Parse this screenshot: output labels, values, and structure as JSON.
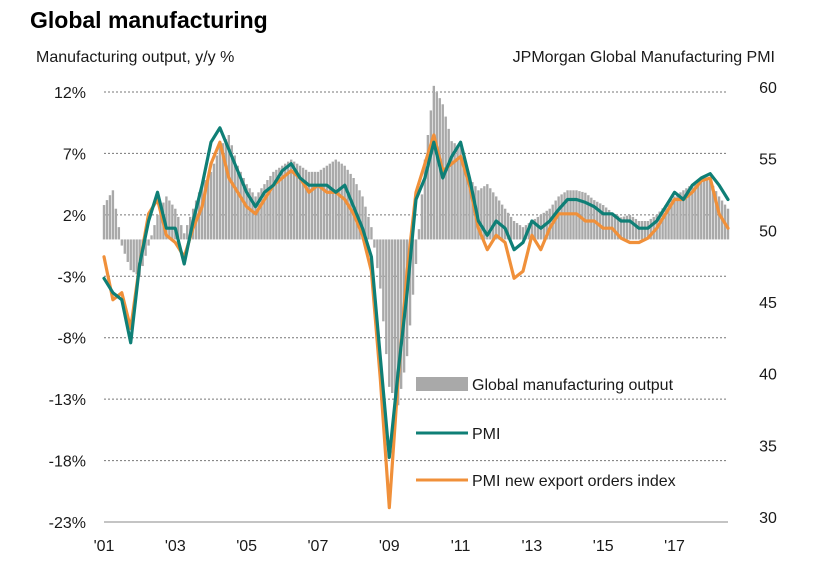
{
  "chart_data": {
    "type": "bar+line",
    "title": "Global manufacturing",
    "ylabel_left": "Manufacturing output, y/y %",
    "ylabel_right": "JPMorgan Global Manufacturing PMI",
    "left_axis": {
      "range": [
        -23,
        12
      ],
      "ticks": [
        12,
        7,
        2,
        -3,
        -8,
        -13,
        -18,
        -23
      ],
      "tick_labels": [
        "12%",
        "7%",
        "2%",
        "-3%",
        "-8%",
        "-13%",
        "-18%",
        "-23%"
      ]
    },
    "right_axis": {
      "range": [
        30,
        60
      ],
      "ticks": [
        60,
        55,
        50,
        45,
        40,
        35,
        30
      ],
      "tick_labels": [
        "60",
        "55",
        "50",
        "45",
        "40",
        "35",
        "30"
      ]
    },
    "x_axis": {
      "range": [
        2001.0,
        2018.5
      ],
      "ticks": [
        2001,
        2003,
        2005,
        2007,
        2009,
        2011,
        2013,
        2015,
        2017
      ],
      "tick_labels": [
        "'01",
        "'03",
        "'05",
        "'07",
        "'09",
        "'11",
        "'13",
        "'15",
        "'17"
      ]
    },
    "grid": "horizontal dashed",
    "colors": {
      "output": "#a9a9a9",
      "pmi": "#0f7f76",
      "export": "#f0903a",
      "grid": "#777777"
    },
    "series": [
      {
        "name": "Global manufacturing output",
        "axis": "left",
        "style": "bars",
        "points": [
          [
            2001.0,
            2.8
          ],
          [
            2001.25,
            4.0
          ],
          [
            2001.5,
            -0.5
          ],
          [
            2001.75,
            -2.5
          ],
          [
            2002.0,
            -3.0
          ],
          [
            2002.25,
            -0.5
          ],
          [
            2002.5,
            2.0
          ],
          [
            2002.75,
            3.5
          ],
          [
            2003.0,
            2.5
          ],
          [
            2003.25,
            0.5
          ],
          [
            2003.5,
            2.5
          ],
          [
            2003.75,
            4.5
          ],
          [
            2004.0,
            5.5
          ],
          [
            2004.25,
            7.5
          ],
          [
            2004.5,
            8.5
          ],
          [
            2004.75,
            6.0
          ],
          [
            2005.0,
            4.5
          ],
          [
            2005.25,
            3.5
          ],
          [
            2005.5,
            4.5
          ],
          [
            2005.75,
            5.5
          ],
          [
            2006.0,
            6.0
          ],
          [
            2006.25,
            6.5
          ],
          [
            2006.5,
            6.0
          ],
          [
            2006.75,
            5.5
          ],
          [
            2007.0,
            5.5
          ],
          [
            2007.25,
            6.0
          ],
          [
            2007.5,
            6.5
          ],
          [
            2007.75,
            6.0
          ],
          [
            2008.0,
            5.0
          ],
          [
            2008.25,
            3.5
          ],
          [
            2008.5,
            1.0
          ],
          [
            2008.75,
            -4.0
          ],
          [
            2009.0,
            -12.0
          ],
          [
            2009.25,
            -13.5
          ],
          [
            2009.5,
            -9.5
          ],
          [
            2009.75,
            -2.0
          ],
          [
            2010.0,
            6.5
          ],
          [
            2010.25,
            12.5
          ],
          [
            2010.5,
            11.0
          ],
          [
            2010.75,
            8.0
          ],
          [
            2011.0,
            7.5
          ],
          [
            2011.25,
            5.0
          ],
          [
            2011.5,
            4.0
          ],
          [
            2011.75,
            4.5
          ],
          [
            2012.0,
            3.5
          ],
          [
            2012.25,
            2.5
          ],
          [
            2012.5,
            1.5
          ],
          [
            2012.75,
            1.0
          ],
          [
            2013.0,
            1.5
          ],
          [
            2013.25,
            2.0
          ],
          [
            2013.5,
            2.5
          ],
          [
            2013.75,
            3.5
          ],
          [
            2014.0,
            4.0
          ],
          [
            2014.25,
            4.0
          ],
          [
            2014.5,
            3.8
          ],
          [
            2014.75,
            3.2
          ],
          [
            2015.0,
            2.8
          ],
          [
            2015.25,
            2.2
          ],
          [
            2015.5,
            1.8
          ],
          [
            2015.75,
            2.0
          ],
          [
            2016.0,
            1.5
          ],
          [
            2016.25,
            1.5
          ],
          [
            2016.5,
            2.0
          ],
          [
            2016.75,
            2.8
          ],
          [
            2017.0,
            3.5
          ],
          [
            2017.25,
            4.0
          ],
          [
            2017.5,
            4.5
          ],
          [
            2017.75,
            5.0
          ],
          [
            2018.0,
            4.8
          ],
          [
            2018.25,
            3.5
          ],
          [
            2018.5,
            2.5
          ]
        ]
      },
      {
        "name": "PMI",
        "axis": "right",
        "style": "line",
        "points": [
          [
            2001.0,
            47.0
          ],
          [
            2001.25,
            46.0
          ],
          [
            2001.5,
            45.5
          ],
          [
            2001.75,
            42.5
          ],
          [
            2002.0,
            48.0
          ],
          [
            2002.25,
            51.0
          ],
          [
            2002.5,
            53.0
          ],
          [
            2002.75,
            50.5
          ],
          [
            2003.0,
            50.5
          ],
          [
            2003.25,
            48.0
          ],
          [
            2003.5,
            51.0
          ],
          [
            2003.75,
            53.5
          ],
          [
            2004.0,
            56.5
          ],
          [
            2004.25,
            57.5
          ],
          [
            2004.5,
            56.0
          ],
          [
            2004.75,
            54.5
          ],
          [
            2005.0,
            53.0
          ],
          [
            2005.25,
            52.0
          ],
          [
            2005.5,
            53.0
          ],
          [
            2005.75,
            53.5
          ],
          [
            2006.0,
            54.5
          ],
          [
            2006.25,
            55.0
          ],
          [
            2006.5,
            54.0
          ],
          [
            2006.75,
            53.5
          ],
          [
            2007.0,
            53.5
          ],
          [
            2007.25,
            53.5
          ],
          [
            2007.5,
            53.0
          ],
          [
            2007.75,
            53.5
          ],
          [
            2008.0,
            52.0
          ],
          [
            2008.25,
            50.5
          ],
          [
            2008.5,
            48.5
          ],
          [
            2008.75,
            41.5
          ],
          [
            2009.0,
            34.5
          ],
          [
            2009.25,
            40.5
          ],
          [
            2009.5,
            46.0
          ],
          [
            2009.75,
            52.5
          ],
          [
            2010.0,
            54.0
          ],
          [
            2010.25,
            56.5
          ],
          [
            2010.5,
            54.0
          ],
          [
            2010.75,
            55.5
          ],
          [
            2011.0,
            56.5
          ],
          [
            2011.25,
            54.0
          ],
          [
            2011.5,
            51.0
          ],
          [
            2011.75,
            50.0
          ],
          [
            2012.0,
            51.0
          ],
          [
            2012.25,
            50.5
          ],
          [
            2012.5,
            49.0
          ],
          [
            2012.75,
            49.5
          ],
          [
            2013.0,
            51.0
          ],
          [
            2013.25,
            50.5
          ],
          [
            2013.5,
            51.0
          ],
          [
            2013.75,
            51.8
          ],
          [
            2014.0,
            52.5
          ],
          [
            2014.25,
            52.5
          ],
          [
            2014.5,
            52.3
          ],
          [
            2014.75,
            52.0
          ],
          [
            2015.0,
            51.5
          ],
          [
            2015.25,
            51.5
          ],
          [
            2015.5,
            51.0
          ],
          [
            2015.75,
            51.0
          ],
          [
            2016.0,
            50.5
          ],
          [
            2016.25,
            50.5
          ],
          [
            2016.5,
            51.0
          ],
          [
            2016.75,
            52.0
          ],
          [
            2017.0,
            53.0
          ],
          [
            2017.25,
            52.5
          ],
          [
            2017.5,
            53.5
          ],
          [
            2017.75,
            54.0
          ],
          [
            2018.0,
            54.3
          ],
          [
            2018.25,
            53.5
          ],
          [
            2018.5,
            52.5
          ]
        ]
      },
      {
        "name": "PMI new export orders index",
        "axis": "right",
        "style": "line",
        "points": [
          [
            2001.0,
            48.5
          ],
          [
            2001.25,
            45.5
          ],
          [
            2001.5,
            46.0
          ],
          [
            2001.75,
            43.5
          ],
          [
            2002.0,
            48.0
          ],
          [
            2002.25,
            51.5
          ],
          [
            2002.5,
            52.5
          ],
          [
            2002.75,
            50.0
          ],
          [
            2003.0,
            49.5
          ],
          [
            2003.25,
            48.5
          ],
          [
            2003.5,
            50.5
          ],
          [
            2003.75,
            52.0
          ],
          [
            2004.0,
            55.0
          ],
          [
            2004.25,
            56.5
          ],
          [
            2004.5,
            54.0
          ],
          [
            2004.75,
            53.0
          ],
          [
            2005.0,
            52.0
          ],
          [
            2005.25,
            51.5
          ],
          [
            2005.5,
            52.5
          ],
          [
            2005.75,
            53.5
          ],
          [
            2006.0,
            54.0
          ],
          [
            2006.25,
            54.5
          ],
          [
            2006.5,
            54.0
          ],
          [
            2006.75,
            53.0
          ],
          [
            2007.0,
            53.5
          ],
          [
            2007.25,
            53.0
          ],
          [
            2007.5,
            53.0
          ],
          [
            2007.75,
            52.5
          ],
          [
            2008.0,
            51.5
          ],
          [
            2008.25,
            50.0
          ],
          [
            2008.5,
            47.5
          ],
          [
            2008.75,
            40.0
          ],
          [
            2009.0,
            31.0
          ],
          [
            2009.25,
            40.0
          ],
          [
            2009.5,
            47.5
          ],
          [
            2009.75,
            53.0
          ],
          [
            2010.0,
            55.0
          ],
          [
            2010.25,
            57.0
          ],
          [
            2010.5,
            54.5
          ],
          [
            2010.75,
            55.0
          ],
          [
            2011.0,
            55.5
          ],
          [
            2011.25,
            53.5
          ],
          [
            2011.5,
            50.5
          ],
          [
            2011.75,
            49.0
          ],
          [
            2012.0,
            50.0
          ],
          [
            2012.25,
            49.5
          ],
          [
            2012.5,
            47.0
          ],
          [
            2012.75,
            47.5
          ],
          [
            2013.0,
            50.0
          ],
          [
            2013.25,
            49.0
          ],
          [
            2013.5,
            50.5
          ],
          [
            2013.75,
            51.5
          ],
          [
            2014.0,
            51.5
          ],
          [
            2014.25,
            51.5
          ],
          [
            2014.5,
            51.0
          ],
          [
            2014.75,
            51.0
          ],
          [
            2015.0,
            50.5
          ],
          [
            2015.25,
            50.5
          ],
          [
            2015.5,
            49.8
          ],
          [
            2015.75,
            49.5
          ],
          [
            2016.0,
            49.5
          ],
          [
            2016.25,
            49.8
          ],
          [
            2016.5,
            50.5
          ],
          [
            2016.75,
            51.5
          ],
          [
            2017.0,
            52.5
          ],
          [
            2017.25,
            52.5
          ],
          [
            2017.5,
            53.0
          ],
          [
            2017.75,
            53.8
          ],
          [
            2018.0,
            54.0
          ],
          [
            2018.25,
            51.5
          ],
          [
            2018.5,
            50.5
          ]
        ]
      }
    ]
  }
}
